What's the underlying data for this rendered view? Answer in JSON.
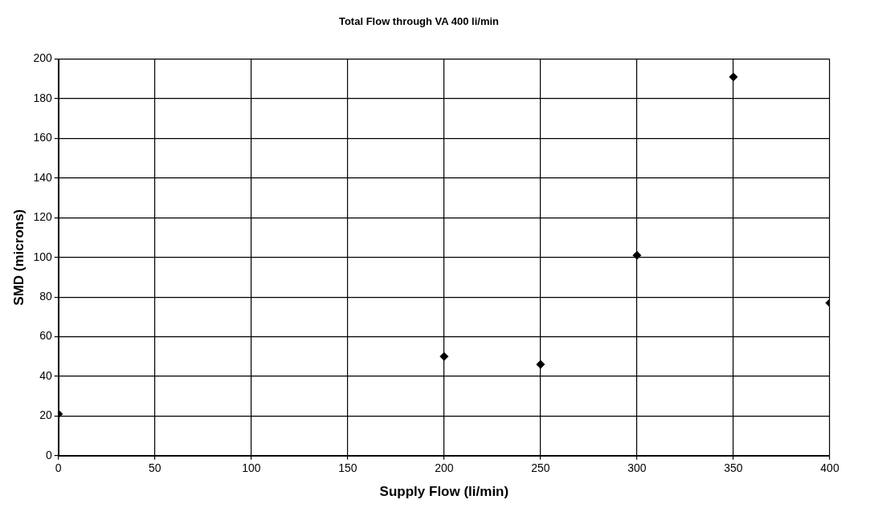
{
  "chart_data": {
    "type": "scatter",
    "title": "Total Flow through VA 400 li/min",
    "xlabel": "Supply Flow (li/min)",
    "ylabel": "SMD (microns)",
    "x": [
      0,
      200,
      250,
      300,
      350,
      400
    ],
    "series": [
      {
        "color": "#000000",
        "values": [
          21,
          50,
          46,
          101,
          191,
          77
        ]
      }
    ],
    "xlim": [
      0,
      400
    ],
    "xticks": [
      0,
      50,
      100,
      150,
      200,
      250,
      300,
      350,
      400
    ],
    "ylim": [
      0,
      200
    ],
    "yticks": [
      0,
      20,
      40,
      60,
      80,
      100,
      120,
      140,
      160,
      180,
      200
    ],
    "grid": true,
    "legend": false,
    "marker": "diamond"
  }
}
